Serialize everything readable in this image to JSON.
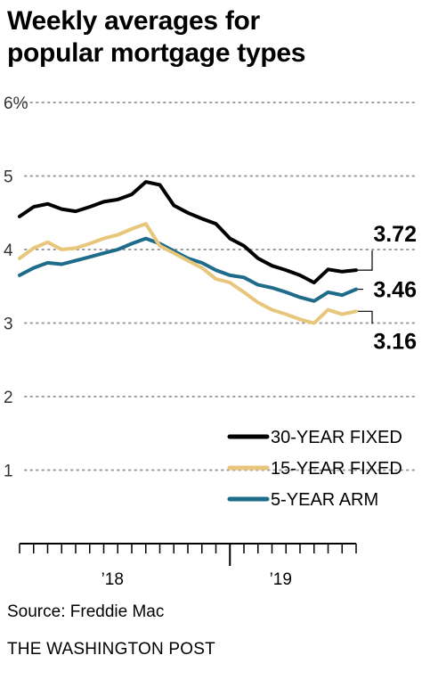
{
  "title": {
    "line1": "Weekly averages for",
    "line2": "popular mortgage types"
  },
  "source": "Source: Freddie Mac",
  "credit": "THE WASHINGTON POST",
  "chart_data": {
    "type": "line",
    "title": "Weekly averages for popular mortgage types",
    "ylim": [
      0,
      6
    ],
    "y_ticks": [
      1,
      2,
      3,
      4,
      5,
      6
    ],
    "y_tick_labels": [
      "1",
      "2",
      "3",
      "4",
      "5",
      "6%"
    ],
    "xlim": [
      "2017-09",
      "2019-09"
    ],
    "x_tick_labels": [
      {
        "label": "’18",
        "x": "2018-04"
      },
      {
        "label": "’19",
        "x": "2019-04"
      }
    ],
    "year_divider": "2018-12",
    "grid": true,
    "legend": "bottom-right",
    "series": [
      {
        "name": "30-YEAR FIXED",
        "color": "#000000",
        "end_label": "3.72",
        "x": [
          "2017-09",
          "2017-10",
          "2017-11",
          "2017-12",
          "2018-01",
          "2018-02",
          "2018-03",
          "2018-04",
          "2018-05",
          "2018-06",
          "2018-07",
          "2018-08",
          "2018-09",
          "2018-10",
          "2018-11",
          "2018-12",
          "2019-01",
          "2019-02",
          "2019-03",
          "2019-04",
          "2019-05",
          "2019-06",
          "2019-07",
          "2019-08",
          "2019-09"
        ],
        "values": [
          4.45,
          4.58,
          4.62,
          4.55,
          4.52,
          4.58,
          4.65,
          4.68,
          4.75,
          4.92,
          4.88,
          4.6,
          4.5,
          4.42,
          4.35,
          4.15,
          4.05,
          3.88,
          3.78,
          3.72,
          3.65,
          3.55,
          3.73,
          3.7,
          3.72
        ]
      },
      {
        "name": "15-YEAR FIXED",
        "color": "#e8c77c",
        "end_label": "3.16",
        "x": [
          "2017-09",
          "2017-10",
          "2017-11",
          "2017-12",
          "2018-01",
          "2018-02",
          "2018-03",
          "2018-04",
          "2018-05",
          "2018-06",
          "2018-07",
          "2018-08",
          "2018-09",
          "2018-10",
          "2018-11",
          "2018-12",
          "2019-01",
          "2019-02",
          "2019-03",
          "2019-04",
          "2019-05",
          "2019-06",
          "2019-07",
          "2019-08",
          "2019-09"
        ],
        "values": [
          3.88,
          4.02,
          4.1,
          4.0,
          4.02,
          4.08,
          4.15,
          4.2,
          4.28,
          4.35,
          4.05,
          3.95,
          3.85,
          3.75,
          3.6,
          3.55,
          3.42,
          3.28,
          3.18,
          3.12,
          3.05,
          3.0,
          3.18,
          3.12,
          3.16
        ]
      },
      {
        "name": "5-YEAR ARM",
        "color": "#1e6b8a",
        "end_label": "3.46",
        "x": [
          "2017-09",
          "2017-10",
          "2017-11",
          "2017-12",
          "2018-01",
          "2018-02",
          "2018-03",
          "2018-04",
          "2018-05",
          "2018-06",
          "2018-07",
          "2018-08",
          "2018-09",
          "2018-10",
          "2018-11",
          "2018-12",
          "2019-01",
          "2019-02",
          "2019-03",
          "2019-04",
          "2019-05",
          "2019-06",
          "2019-07",
          "2019-08",
          "2019-09"
        ],
        "values": [
          3.65,
          3.75,
          3.82,
          3.8,
          3.85,
          3.9,
          3.95,
          4.0,
          4.08,
          4.15,
          4.08,
          3.98,
          3.88,
          3.82,
          3.72,
          3.65,
          3.62,
          3.52,
          3.48,
          3.42,
          3.35,
          3.3,
          3.42,
          3.38,
          3.46
        ]
      }
    ]
  }
}
